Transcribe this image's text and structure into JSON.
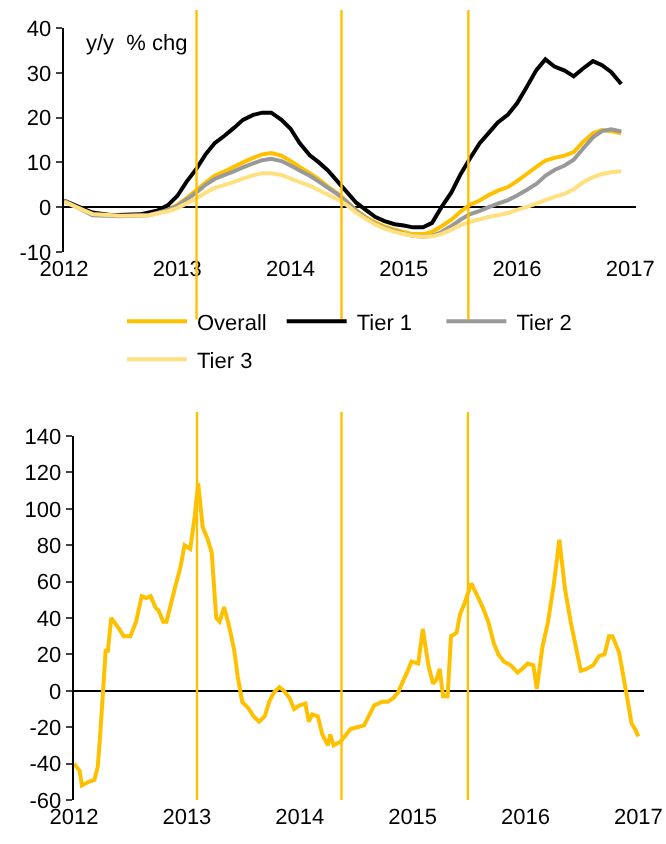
{
  "chart_data": [
    {
      "type": "line",
      "ylabel": "y/y  % chg",
      "legend": "bottom",
      "xlim": [
        2012,
        2017.05
      ],
      "xticks": [
        2012,
        2013,
        2014,
        2015,
        2016,
        2017
      ],
      "ylim": [
        -10,
        40
      ],
      "yticks": [
        -10,
        0,
        10,
        20,
        30,
        40
      ],
      "ref_lines": [
        {
          "axis": "x",
          "value": 2013.17,
          "color": "#ffc000"
        },
        {
          "axis": "x",
          "value": 2014.45,
          "color": "#ffc000"
        },
        {
          "axis": "x",
          "value": 2015.57,
          "color": "#ffc000"
        }
      ],
      "series": [
        {
          "name": "Overall",
          "color": "#ffc000",
          "x": [
            2012,
            2012.25,
            2012.5,
            2012.75,
            2012.92,
            2013,
            2013.08,
            2013.17,
            2013.25,
            2013.33,
            2013.42,
            2013.5,
            2013.58,
            2013.67,
            2013.75,
            2013.83,
            2013.92,
            2014,
            2014.08,
            2014.17,
            2014.25,
            2014.33,
            2014.42,
            2014.5,
            2014.58,
            2014.67,
            2014.75,
            2014.83,
            2014.92,
            2015,
            2015.08,
            2015.17,
            2015.25,
            2015.33,
            2015.42,
            2015.5,
            2015.58,
            2015.67,
            2015.75,
            2015.83,
            2015.92,
            2016,
            2016.08,
            2016.17,
            2016.25,
            2016.33,
            2016.42,
            2016.5,
            2016.58,
            2016.67,
            2016.75,
            2016.83,
            2016.92
          ],
          "values": [
            1.5,
            -1.4,
            -1.9,
            -1.7,
            -0.5,
            0.5,
            2,
            3.8,
            5.5,
            7,
            8,
            9,
            10,
            11,
            11.8,
            12.1,
            11.5,
            10.3,
            9,
            7.6,
            6.2,
            4.6,
            3,
            1.2,
            -0.7,
            -2.3,
            -3.4,
            -4.3,
            -5,
            -5.5,
            -6,
            -6,
            -5.5,
            -4.3,
            -2.8,
            -1,
            0.5,
            1.5,
            2.7,
            3.7,
            4.5,
            5.8,
            7.3,
            9,
            10.4,
            11,
            11.5,
            12.3,
            14.5,
            16.5,
            17.2,
            17,
            16.5
          ]
        },
        {
          "name": "Tier 1",
          "color": "#000000",
          "x": [
            2012,
            2012.25,
            2012.42,
            2012.67,
            2012.83,
            2012.92,
            2013,
            2013.08,
            2013.17,
            2013.25,
            2013.33,
            2013.42,
            2013.5,
            2013.58,
            2013.67,
            2013.75,
            2013.83,
            2013.92,
            2014,
            2014.08,
            2014.17,
            2014.25,
            2014.33,
            2014.42,
            2014.5,
            2014.58,
            2014.67,
            2014.75,
            2014.83,
            2014.92,
            2015,
            2015.08,
            2015.17,
            2015.25,
            2015.33,
            2015.42,
            2015.5,
            2015.58,
            2015.67,
            2015.75,
            2015.83,
            2015.92,
            2016,
            2016.08,
            2016.17,
            2016.25,
            2016.33,
            2016.42,
            2016.5,
            2016.58,
            2016.67,
            2016.75,
            2016.83,
            2016.92
          ],
          "values": [
            1.5,
            -1.2,
            -1.8,
            -1.6,
            -0.7,
            0.5,
            2.5,
            5.6,
            8.6,
            11.8,
            14.3,
            16,
            17.7,
            19.5,
            20.6,
            21.1,
            21.1,
            19.5,
            17.5,
            14.3,
            11.6,
            10,
            8.2,
            5.6,
            3.3,
            1,
            -0.7,
            -2.2,
            -3.1,
            -3.8,
            -4.1,
            -4.5,
            -4.5,
            -3.5,
            -0.1,
            3.3,
            7.3,
            10.7,
            14.3,
            16.6,
            18.9,
            20.7,
            23.2,
            26.6,
            30.6,
            33,
            31.4,
            30.5,
            29.2,
            30.9,
            32.6,
            31.7,
            30.2,
            27.5
          ]
        },
        {
          "name": "Tier 2",
          "color": "#999999",
          "x": [
            2012,
            2012.25,
            2012.5,
            2012.75,
            2012.92,
            2013,
            2013.08,
            2013.17,
            2013.25,
            2013.33,
            2013.42,
            2013.5,
            2013.58,
            2013.67,
            2013.75,
            2013.83,
            2013.92,
            2014,
            2014.08,
            2014.17,
            2014.25,
            2014.33,
            2014.42,
            2014.5,
            2014.58,
            2014.67,
            2014.75,
            2014.83,
            2014.92,
            2015,
            2015.08,
            2015.17,
            2015.25,
            2015.33,
            2015.42,
            2015.5,
            2015.58,
            2015.67,
            2015.75,
            2015.83,
            2015.92,
            2016,
            2016.08,
            2016.17,
            2016.25,
            2016.33,
            2016.42,
            2016.5,
            2016.58,
            2016.67,
            2016.75,
            2016.83,
            2016.92
          ],
          "values": [
            1.5,
            -1.8,
            -2,
            -1.8,
            -0.6,
            0.3,
            1.7,
            3.3,
            5,
            6.3,
            7.2,
            8,
            8.9,
            9.8,
            10.5,
            10.8,
            10.3,
            9.3,
            8.2,
            7,
            5.7,
            4.3,
            2.8,
            1.1,
            -0.8,
            -2.5,
            -3.7,
            -4.6,
            -5.3,
            -5.9,
            -6.4,
            -6.6,
            -6.4,
            -5.6,
            -4.2,
            -2.8,
            -1.6,
            -0.8,
            0,
            0.8,
            1.6,
            2.6,
            3.8,
            5.2,
            7,
            8.3,
            9.3,
            10.6,
            13,
            15.6,
            17,
            17.4,
            16.9
          ]
        },
        {
          "name": "Tier 3",
          "color": "#ffe080",
          "x": [
            2012,
            2012.25,
            2012.5,
            2012.75,
            2012.92,
            2013,
            2013.08,
            2013.17,
            2013.25,
            2013.33,
            2013.42,
            2013.5,
            2013.58,
            2013.67,
            2013.75,
            2013.83,
            2013.92,
            2014,
            2014.08,
            2014.17,
            2014.25,
            2014.33,
            2014.42,
            2014.5,
            2014.58,
            2014.67,
            2014.75,
            2014.83,
            2014.92,
            2015,
            2015.08,
            2015.17,
            2015.25,
            2015.33,
            2015.42,
            2015.5,
            2015.58,
            2015.67,
            2015.75,
            2015.83,
            2015.92,
            2016,
            2016.08,
            2016.17,
            2016.25,
            2016.33,
            2016.42,
            2016.5,
            2016.58,
            2016.67,
            2016.75,
            2016.83,
            2016.92
          ],
          "values": [
            1.2,
            -1.5,
            -1.9,
            -1.8,
            -0.9,
            -0.2,
            0.8,
            2,
            3.2,
            4.3,
            5,
            5.6,
            6.4,
            7.1,
            7.6,
            7.6,
            7.2,
            6.4,
            5.6,
            4.8,
            3.8,
            2.8,
            1.7,
            0.4,
            -1.2,
            -2.7,
            -3.9,
            -4.8,
            -5.5,
            -6,
            -6.4,
            -6.6,
            -6.5,
            -6,
            -5,
            -4,
            -3.3,
            -2.7,
            -2.2,
            -1.8,
            -1.3,
            -0.6,
            0,
            0.8,
            1.6,
            2.3,
            3,
            4,
            5.5,
            6.7,
            7.4,
            7.8,
            8
          ]
        }
      ]
    },
    {
      "type": "line",
      "xlim": [
        2012,
        2017.05
      ],
      "xticks": [
        2012,
        2013,
        2014,
        2015,
        2016,
        2017
      ],
      "ylim": [
        -60,
        140
      ],
      "yticks": [
        -60,
        -40,
        -20,
        0,
        20,
        40,
        60,
        80,
        100,
        120,
        140
      ],
      "ref_lines": [
        {
          "axis": "x",
          "value": 2013.09,
          "color": "#ffc000"
        },
        {
          "axis": "x",
          "value": 2014.37,
          "color": "#ffc000"
        },
        {
          "axis": "x",
          "value": 2015.49,
          "color": "#ffc000"
        }
      ],
      "series": [
        {
          "color": "#ffc000",
          "x": [
            2012,
            2012.05,
            2012.07,
            2012.13,
            2012.18,
            2012.21,
            2012.23,
            2012.26,
            2012.28,
            2012.3,
            2012.33,
            2012.4,
            2012.44,
            2012.5,
            2012.55,
            2012.6,
            2012.64,
            2012.68,
            2012.72,
            2012.75,
            2012.79,
            2012.82,
            2012.86,
            2012.9,
            2012.94,
            2012.98,
            2013.03,
            2013.07,
            2013.1,
            2013.14,
            2013.18,
            2013.22,
            2013.26,
            2013.29,
            2013.33,
            2013.38,
            2013.42,
            2013.45,
            2013.49,
            2013.55,
            2013.59,
            2013.64,
            2013.69,
            2013.73,
            2013.77,
            2013.82,
            2013.86,
            2013.91,
            2013.95,
            2014,
            2014.05,
            2014.08,
            2014.11,
            2014.16,
            2014.2,
            2014.25,
            2014.27,
            2014.3,
            2014.36,
            2014.4,
            2014.45,
            2014.51,
            2014.57,
            2014.61,
            2014.66,
            2014.73,
            2014.78,
            2014.83,
            2014.87,
            2014.92,
            2014.95,
            2014.99,
            2015.05,
            2015.09,
            2015.14,
            2015.18,
            2015.21,
            2015.24,
            2015.27,
            2015.31,
            2015.34,
            2015.39,
            2015.42,
            2015.46,
            2015.52,
            2015.56,
            2015.62,
            2015.67,
            2015.72,
            2015.76,
            2015.81,
            2015.87,
            2015.93,
            2015.97,
            2016.02,
            2016.07,
            2016.1,
            2016.15,
            2016.2,
            2016.25,
            2016.3,
            2016.35,
            2016.4,
            2016.44,
            2016.49,
            2016.54,
            2016.6,
            2016.65,
            2016.7,
            2016.74,
            2016.77,
            2016.83,
            2016.89,
            2016.94,
            2016.97,
            2017
          ],
          "values": [
            -40,
            -44,
            -52,
            -50,
            -49,
            -42,
            -26,
            2,
            22,
            22,
            40,
            34,
            30,
            30,
            38,
            52,
            51,
            52,
            46,
            44,
            38,
            38,
            48,
            58,
            67,
            80,
            78,
            96,
            114,
            90,
            84,
            76,
            40,
            38,
            46,
            34,
            22,
            8,
            -6,
            -10,
            -14,
            -17,
            -14,
            -6,
            -1,
            2,
            0,
            -4,
            -10,
            -8,
            -7,
            -17,
            -13,
            -14,
            -24,
            -30,
            -24,
            -30,
            -28,
            -25,
            -21,
            -20,
            -19,
            -14,
            -8,
            -6,
            -6,
            -4,
            -1,
            6,
            10,
            16,
            15,
            34,
            14,
            4,
            6,
            12,
            -3,
            -3,
            30,
            32,
            42,
            48,
            59,
            54,
            46,
            38,
            26,
            20,
            16,
            14,
            10,
            12,
            15,
            14,
            1,
            24,
            38,
            58,
            83,
            56,
            38,
            26,
            11,
            12,
            14,
            19,
            20,
            30,
            30,
            21,
            0,
            -18,
            -21,
            -25
          ]
        }
      ]
    }
  ]
}
